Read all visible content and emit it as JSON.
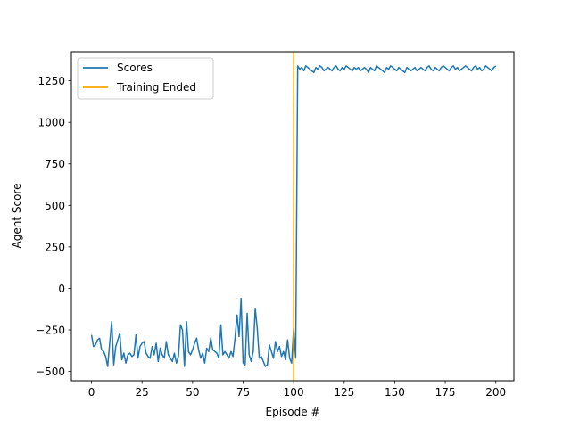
{
  "chart_data": {
    "type": "line",
    "title": "",
    "xlabel": "Episode #",
    "ylabel": "Agent Score",
    "xlim": [
      -9.95,
      208.95
    ],
    "ylim": [
      -556,
      1425
    ],
    "xticks": [
      0,
      25,
      50,
      75,
      100,
      125,
      150,
      175,
      200
    ],
    "yticks": [
      -500,
      -250,
      0,
      250,
      500,
      750,
      1000,
      1250
    ],
    "grid": false,
    "legend": {
      "placement": "top-left",
      "entries": [
        "Scores",
        "Training Ended"
      ]
    },
    "series": [
      {
        "name": "Scores",
        "color": "#1f77b4",
        "x_start": 0,
        "values": [
          -280,
          -350,
          -340,
          -310,
          -300,
          -370,
          -380,
          -410,
          -470,
          -330,
          -200,
          -460,
          -350,
          -310,
          -270,
          -430,
          -390,
          -450,
          -400,
          -390,
          -410,
          -400,
          -280,
          -420,
          -350,
          -330,
          -320,
          -390,
          -410,
          -420,
          -350,
          -400,
          -330,
          -440,
          -360,
          -400,
          -420,
          -320,
          -400,
          -420,
          -440,
          -390,
          -450,
          -410,
          -220,
          -250,
          -470,
          -200,
          -380,
          -400,
          -370,
          -330,
          -300,
          -370,
          -420,
          -390,
          -450,
          -360,
          -380,
          -300,
          -370,
          -380,
          -390,
          -420,
          -220,
          -400,
          -380,
          -400,
          -420,
          -380,
          -410,
          -300,
          -160,
          -290,
          -60,
          -450,
          -460,
          -150,
          -400,
          -440,
          -380,
          -120,
          -240,
          -420,
          -410,
          -440,
          -470,
          -460,
          -340,
          -380,
          -420,
          -320,
          -380,
          -350,
          -410,
          -380,
          -430,
          -310,
          -420,
          -450,
          -240,
          -420,
          1340,
          1320,
          1330,
          1310,
          1340,
          1330,
          1320,
          1310,
          1300,
          1330,
          1320,
          1340,
          1330,
          1310,
          1320,
          1330,
          1320,
          1310,
          1330,
          1340,
          1320,
          1310,
          1330,
          1320,
          1340,
          1330,
          1320,
          1310,
          1330,
          1320,
          1330,
          1310,
          1320,
          1330,
          1320,
          1300,
          1330,
          1320,
          1310,
          1340,
          1330,
          1320,
          1310,
          1300,
          1330,
          1320,
          1340,
          1330,
          1320,
          1310,
          1330,
          1320,
          1310,
          1300,
          1330,
          1320,
          1310,
          1320,
          1330,
          1310,
          1320,
          1330,
          1320,
          1310,
          1330,
          1340,
          1320,
          1310,
          1330,
          1320,
          1310,
          1330,
          1340,
          1330,
          1320,
          1310,
          1330,
          1340,
          1320,
          1330,
          1310,
          1320,
          1330,
          1340,
          1330,
          1320,
          1310,
          1330,
          1340,
          1320,
          1330,
          1310,
          1320,
          1340,
          1330,
          1320,
          1310,
          1330,
          1340
        ]
      },
      {
        "name": "Training Ended",
        "color": "#ffa500",
        "x": [
          100,
          100
        ],
        "y": [
          -556,
          1425
        ]
      }
    ]
  }
}
